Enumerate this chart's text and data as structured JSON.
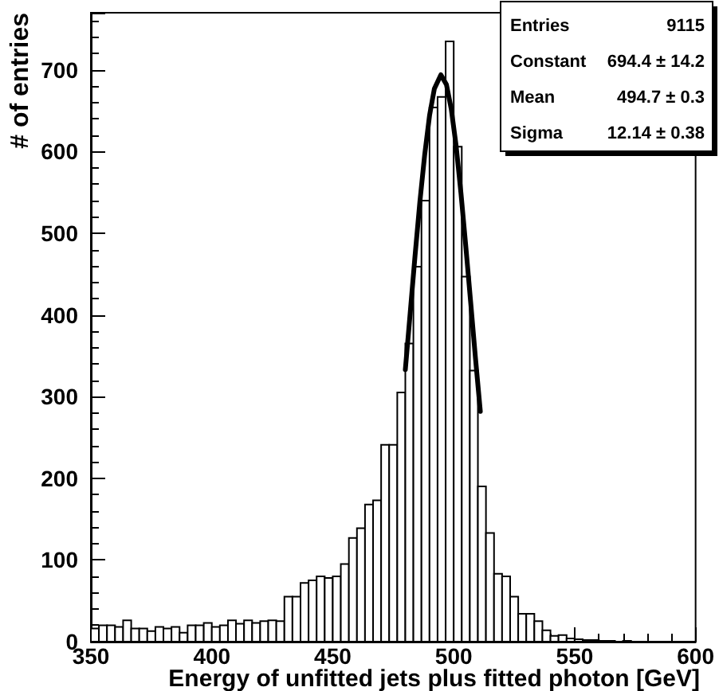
{
  "chart_data": {
    "type": "histogram",
    "xlabel": "Energy of unfitted jets plus fitted photon [GeV]",
    "ylabel": "# of entries",
    "xlim": [
      350,
      600
    ],
    "xticks": [
      350,
      400,
      450,
      500,
      550,
      600
    ],
    "ylim": [
      0,
      770
    ],
    "yticks": [
      0,
      100,
      200,
      300,
      400,
      500,
      600,
      700
    ],
    "color": "#000000",
    "bins": [
      350,
      353.33,
      356.67,
      360,
      363.33,
      366.67,
      370,
      373.33,
      376.67,
      380,
      383.33,
      386.67,
      390,
      393.33,
      396.67,
      400,
      403.33,
      406.67,
      410,
      413.33,
      416.67,
      420,
      423.33,
      426.67,
      430,
      433.33,
      436.67,
      440,
      443.33,
      446.67,
      450,
      453.33,
      456.67,
      460,
      463.33,
      466.67,
      470,
      473.33,
      476.67,
      480,
      483.33,
      486.67,
      490,
      493.33,
      496.67,
      500,
      503.33,
      506.67,
      510,
      513.33,
      516.67,
      520,
      523.33,
      526.67,
      530,
      533.33,
      536.67,
      540,
      543.33,
      546.67,
      550,
      553.33,
      556.67,
      560,
      563.33,
      566.67,
      570,
      573.33,
      576.67,
      580,
      583.33,
      586.67,
      590,
      593.33,
      596.67,
      600
    ],
    "values": [
      16,
      20,
      20,
      18,
      26,
      16,
      16,
      13,
      18,
      16,
      18,
      11,
      20,
      20,
      23,
      18,
      20,
      26,
      22,
      26,
      23,
      25,
      26,
      25,
      55,
      55,
      72,
      75,
      80,
      78,
      80,
      95,
      127,
      139,
      168,
      173,
      241,
      241,
      305,
      365,
      459,
      540,
      654,
      667,
      735,
      606,
      447,
      332,
      190,
      133,
      83,
      80,
      55,
      34,
      34,
      25,
      14,
      7,
      8,
      4,
      3,
      2,
      2,
      1,
      1,
      0,
      1,
      0,
      0,
      0,
      0,
      0,
      0,
      0,
      0
    ],
    "series": [
      {
        "type": "line",
        "color": "#000000",
        "x": [
          480,
          482,
          484,
          486,
          488,
          490,
          492,
          494.7,
          497,
          499,
          501,
          503,
          505,
          507,
          509,
          511
        ],
        "values": [
          333,
          402,
          472,
          538,
          596,
          644,
          677,
          694,
          682,
          652,
          607,
          549,
          484,
          416,
          347,
          282
        ]
      }
    ],
    "annotations": [
      "Entries 9115",
      "Constant 694.4 ± 14.2",
      "Mean 494.7 ± 0.3",
      "Sigma 12.14 ± 0.38"
    ]
  }
}
